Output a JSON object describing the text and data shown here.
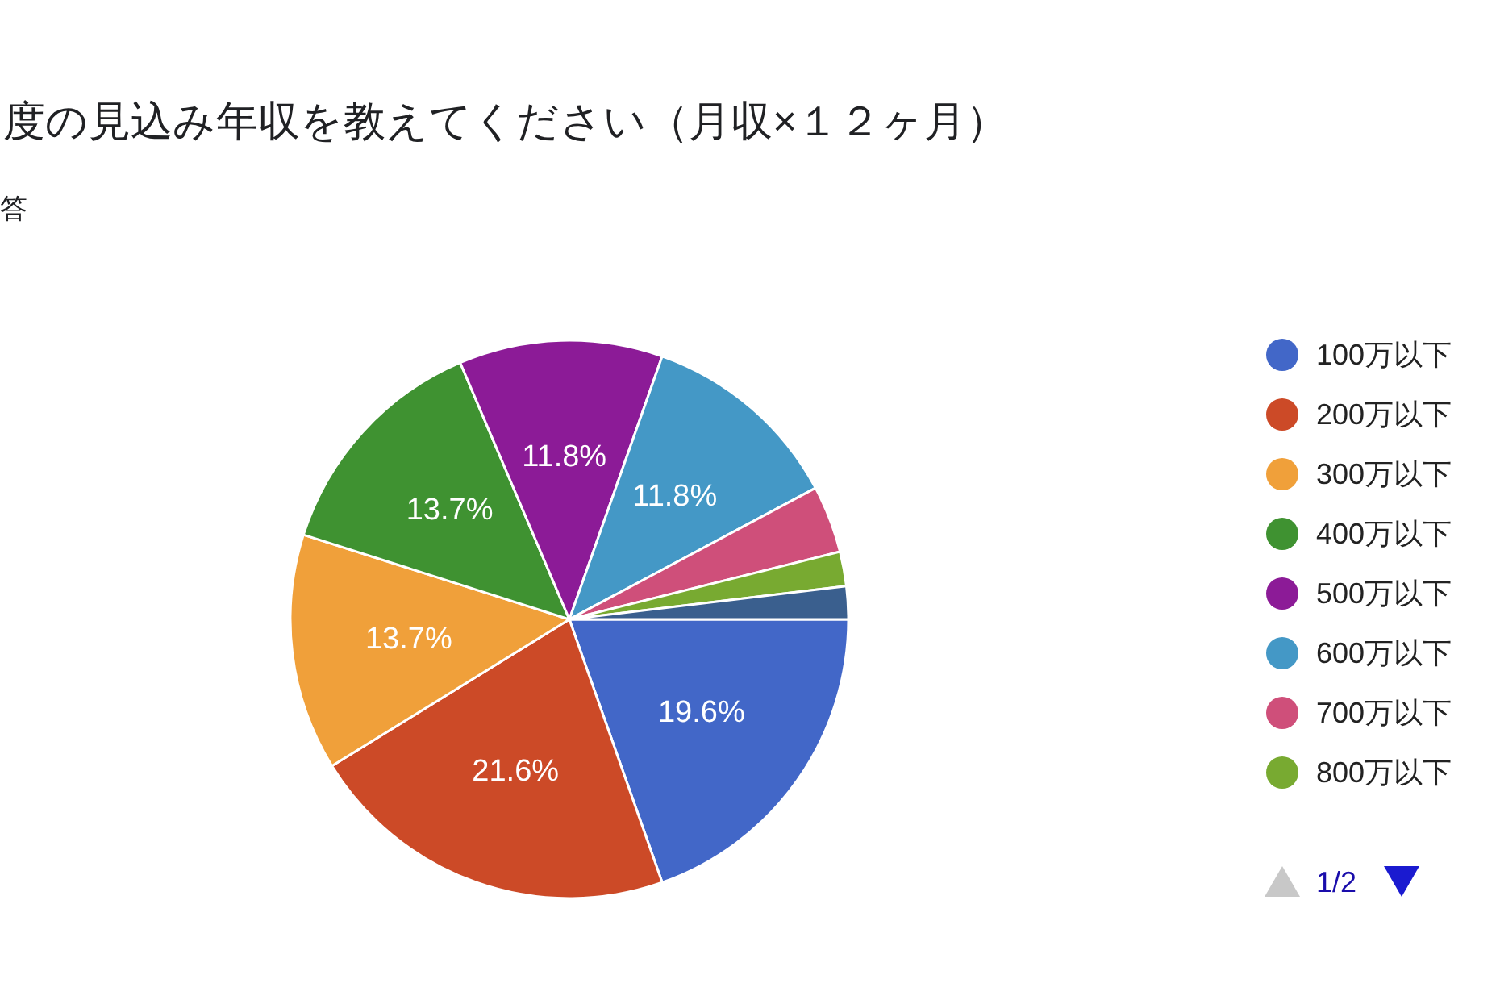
{
  "chart_data": {
    "type": "pie",
    "title": "度の見込み年収を教えてください（月収×１２ヶ月）",
    "subtitle": "答",
    "categories": [
      "100万以下",
      "200万以下",
      "300万以下",
      "400万以下",
      "500万以下",
      "600万以下",
      "700万以下",
      "800万以下",
      null
    ],
    "values": [
      19.6,
      21.6,
      13.7,
      13.7,
      11.8,
      11.8,
      3.9,
      2.0,
      1.9
    ],
    "colors": [
      "#4267c8",
      "#cc4a27",
      "#f0a03a",
      "#3f9231",
      "#8c1b97",
      "#4498c6",
      "#cf4f7a",
      "#78aa31",
      "#3a5f8e"
    ],
    "value_labels": [
      "19.6%",
      "21.6%",
      "13.7%",
      "13.7%",
      "11.8%",
      "11.8%",
      null,
      null,
      null
    ],
    "legend": "right",
    "annotations": [
      "1/2"
    ]
  }
}
